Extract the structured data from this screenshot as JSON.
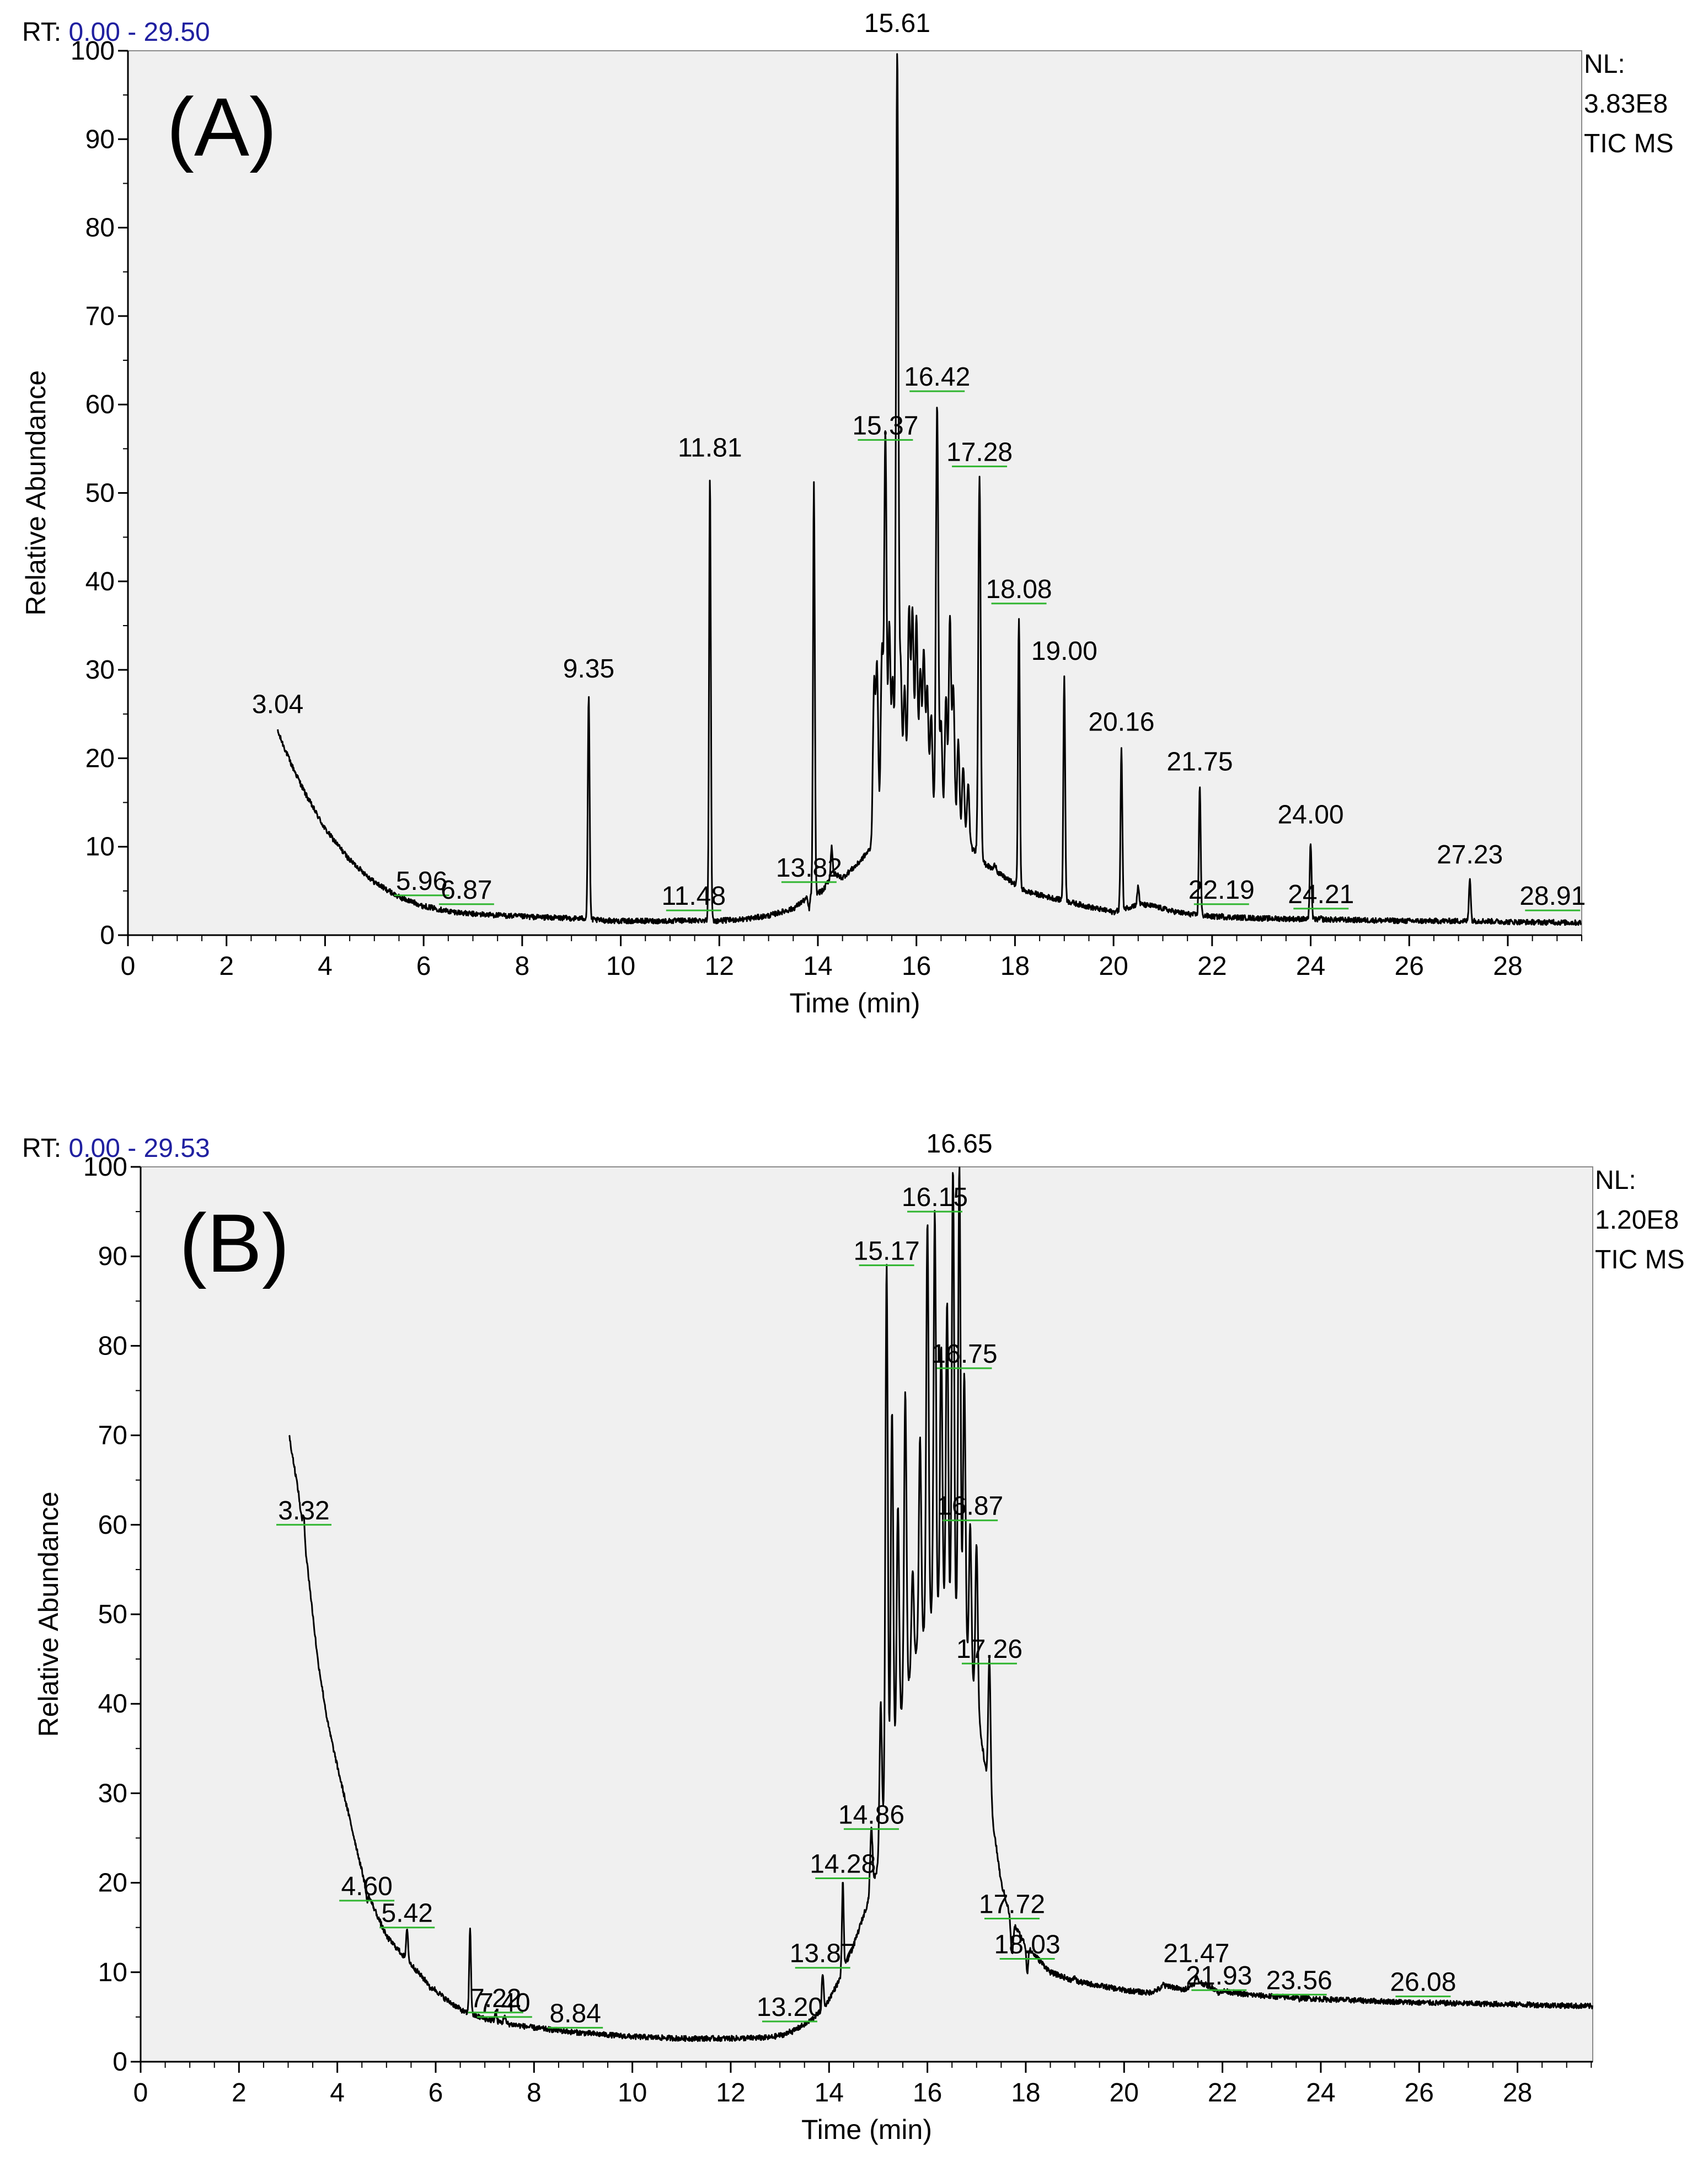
{
  "chart_data": [
    {
      "type": "line",
      "panel_label": "(A)",
      "rt_prefix": "RT:",
      "rt_range_text": "0.00 - 29.50",
      "nl_lines": [
        "NL:",
        "3.83E8",
        "TIC  MS"
      ],
      "xlabel": "Time (min)",
      "ylabel": "Relative Abundance",
      "xlim": [
        0,
        29.5
      ],
      "ylim": [
        0,
        100
      ],
      "x_ticks": [
        0,
        2,
        4,
        6,
        8,
        10,
        12,
        14,
        16,
        18,
        20,
        22,
        24,
        26,
        28
      ],
      "y_ticks": [
        0,
        10,
        20,
        30,
        40,
        50,
        60,
        70,
        80,
        90,
        100
      ],
      "baseline": [
        [
          3.04,
          23
        ],
        [
          3.3,
          19.5
        ],
        [
          3.6,
          16
        ],
        [
          4,
          12
        ],
        [
          4.5,
          8.5
        ],
        [
          5,
          6
        ],
        [
          5.5,
          4.3
        ],
        [
          6,
          3.3
        ],
        [
          6.5,
          2.7
        ],
        [
          7,
          2.4
        ],
        [
          8,
          2.1
        ],
        [
          9,
          1.9
        ],
        [
          9.3,
          1.9
        ],
        [
          9.5,
          1.7
        ],
        [
          10,
          1.6
        ],
        [
          11,
          1.6
        ],
        [
          11.7,
          1.7
        ],
        [
          11.9,
          1.6
        ],
        [
          12.5,
          1.8
        ],
        [
          13,
          2.2
        ],
        [
          13.5,
          3
        ],
        [
          13.85,
          4.5
        ],
        [
          14.1,
          5
        ],
        [
          14.3,
          7
        ],
        [
          14.5,
          6.5
        ],
        [
          14.8,
          8
        ],
        [
          15.1,
          10
        ],
        [
          15.3,
          13
        ],
        [
          15.6,
          16
        ],
        [
          15.9,
          17
        ],
        [
          16.2,
          15
        ],
        [
          16.5,
          13
        ],
        [
          16.8,
          12
        ],
        [
          17.1,
          10
        ],
        [
          17.4,
          8
        ],
        [
          17.8,
          6.5
        ],
        [
          18.2,
          5
        ],
        [
          18.6,
          4.4
        ],
        [
          19,
          3.9
        ],
        [
          19.5,
          3.2
        ],
        [
          20,
          2.6
        ],
        [
          20.5,
          3.5
        ],
        [
          20.8,
          3.3
        ],
        [
          21.2,
          2.7
        ],
        [
          21.5,
          2.4
        ],
        [
          22,
          2.1
        ],
        [
          23,
          1.9
        ],
        [
          24,
          1.8
        ],
        [
          25,
          1.7
        ],
        [
          26,
          1.6
        ],
        [
          27,
          1.6
        ],
        [
          27.5,
          1.6
        ],
        [
          28,
          1.5
        ],
        [
          29.5,
          1.4
        ]
      ],
      "peaks": [
        [
          5.96,
          3.3
        ],
        [
          6.87,
          2.4
        ],
        [
          9.35,
          27
        ],
        [
          11.48,
          1.6
        ],
        [
          11.81,
          52
        ],
        [
          13.82,
          3
        ],
        [
          13.92,
          51
        ],
        [
          14.28,
          10
        ],
        [
          15.14,
          28
        ],
        [
          15.2,
          30
        ],
        [
          15.3,
          32
        ],
        [
          15.37,
          57
        ],
        [
          15.45,
          35
        ],
        [
          15.52,
          29
        ],
        [
          15.61,
          100
        ],
        [
          15.68,
          30
        ],
        [
          15.76,
          28
        ],
        [
          15.85,
          37
        ],
        [
          15.92,
          37
        ],
        [
          16.0,
          36
        ],
        [
          16.08,
          30
        ],
        [
          16.15,
          32
        ],
        [
          16.22,
          28
        ],
        [
          16.3,
          25
        ],
        [
          16.42,
          60
        ],
        [
          16.5,
          24
        ],
        [
          16.6,
          27
        ],
        [
          16.68,
          36
        ],
        [
          16.75,
          28
        ],
        [
          16.85,
          22
        ],
        [
          16.95,
          19
        ],
        [
          17.05,
          17
        ],
        [
          17.28,
          52
        ],
        [
          17.6,
          8
        ],
        [
          18.08,
          36
        ],
        [
          19.0,
          29
        ],
        [
          20.16,
          21
        ],
        [
          20.5,
          5.5
        ],
        [
          21.75,
          17
        ],
        [
          22.19,
          2.2
        ],
        [
          24.0,
          10.5
        ],
        [
          24.21,
          1.9
        ],
        [
          27.23,
          6.5
        ],
        [
          28.91,
          1.6
        ]
      ],
      "peak_labels": [
        {
          "label": "3.04",
          "rt": 3.04,
          "y": 24.5,
          "bar": false
        },
        {
          "label": "5.96",
          "rt": 5.96,
          "y": 4.5,
          "bar": true
        },
        {
          "label": "6.87",
          "rt": 6.87,
          "y": 3.5,
          "bar": true
        },
        {
          "label": "9.35",
          "rt": 9.35,
          "y": 28.5,
          "bar": false
        },
        {
          "label": "11.48",
          "rt": 11.48,
          "y": 2.8,
          "bar": true
        },
        {
          "label": "11.81",
          "rt": 11.81,
          "y": 53.5,
          "bar": false
        },
        {
          "label": "13.82",
          "rt": 13.82,
          "y": 6,
          "bar": true
        },
        {
          "label": "15.37",
          "rt": 15.37,
          "y": 56,
          "bar": true
        },
        {
          "label": "15.61",
          "rt": 15.61,
          "y": 101.5,
          "bar": false
        },
        {
          "label": "16.42",
          "rt": 16.42,
          "y": 61.5,
          "bar": true
        },
        {
          "label": "17.28",
          "rt": 17.28,
          "y": 53,
          "bar": true
        },
        {
          "label": "18.08",
          "rt": 18.08,
          "y": 37.5,
          "bar": true
        },
        {
          "label": "19.00",
          "rt": 19.0,
          "y": 30.5,
          "bar": false
        },
        {
          "label": "20.16",
          "rt": 20.16,
          "y": 22.5,
          "bar": false
        },
        {
          "label": "21.75",
          "rt": 21.75,
          "y": 18,
          "bar": false
        },
        {
          "label": "22.19",
          "rt": 22.19,
          "y": 3.5,
          "bar": true
        },
        {
          "label": "24.00",
          "rt": 24.0,
          "y": 12,
          "bar": false
        },
        {
          "label": "24.21",
          "rt": 24.21,
          "y": 3,
          "bar": true
        },
        {
          "label": "27.23",
          "rt": 27.23,
          "y": 7.5,
          "bar": false
        },
        {
          "label": "28.91",
          "rt": 28.91,
          "y": 2.8,
          "bar": true
        }
      ]
    },
    {
      "type": "line",
      "panel_label": "(B)",
      "rt_prefix": "RT:",
      "rt_range_text": "0.00 - 29.53",
      "nl_lines": [
        "NL:",
        "1.20E8",
        "TIC  MS"
      ],
      "xlabel": "Time (min)",
      "ylabel": "Relative Abundance",
      "xlim": [
        0,
        29.53
      ],
      "ylim": [
        0,
        100
      ],
      "x_ticks": [
        0,
        2,
        4,
        6,
        8,
        10,
        12,
        14,
        16,
        18,
        20,
        22,
        24,
        26,
        28
      ],
      "y_ticks": [
        0,
        10,
        20,
        30,
        40,
        50,
        60,
        70,
        80,
        90,
        100
      ],
      "baseline": [
        [
          3.02,
          70
        ],
        [
          3.2,
          64
        ],
        [
          3.4,
          55
        ],
        [
          3.6,
          45
        ],
        [
          3.8,
          38
        ],
        [
          4,
          33
        ],
        [
          4.3,
          26
        ],
        [
          4.6,
          19
        ],
        [
          5,
          14
        ],
        [
          5.4,
          11.5
        ],
        [
          5.8,
          9
        ],
        [
          6.2,
          7
        ],
        [
          6.6,
          5.5
        ],
        [
          7,
          4.8
        ],
        [
          7.5,
          4.2
        ],
        [
          8,
          3.8
        ],
        [
          8.8,
          3.3
        ],
        [
          9.5,
          3
        ],
        [
          10,
          2.8
        ],
        [
          11,
          2.6
        ],
        [
          12,
          2.6
        ],
        [
          12.8,
          2.7
        ],
        [
          13.2,
          3.2
        ],
        [
          13.6,
          4.5
        ],
        [
          13.9,
          6
        ],
        [
          14.2,
          9
        ],
        [
          14.5,
          13
        ],
        [
          14.8,
          18
        ],
        [
          15,
          22
        ],
        [
          15.2,
          30
        ],
        [
          15.5,
          40
        ],
        [
          15.8,
          46
        ],
        [
          16.1,
          50
        ],
        [
          16.4,
          50
        ],
        [
          16.7,
          48
        ],
        [
          17,
          40
        ],
        [
          17.3,
          28
        ],
        [
          17.5,
          20
        ],
        [
          17.7,
          16
        ],
        [
          18,
          13
        ],
        [
          18.5,
          10
        ],
        [
          19,
          9
        ],
        [
          19.5,
          8.5
        ],
        [
          20,
          8
        ],
        [
          20.5,
          7.7
        ],
        [
          20.9,
          8.5
        ],
        [
          21.2,
          8
        ],
        [
          21.5,
          9
        ],
        [
          21.9,
          8
        ],
        [
          22.5,
          7.5
        ],
        [
          23,
          7.3
        ],
        [
          24,
          7
        ],
        [
          25,
          6.8
        ],
        [
          26,
          6.6
        ],
        [
          27,
          6.5
        ],
        [
          28,
          6.4
        ],
        [
          29.53,
          6.2
        ]
      ],
      "peaks": [
        [
          3.32,
          61
        ],
        [
          4.6,
          18
        ],
        [
          5.42,
          15
        ],
        [
          5.9,
          8
        ],
        [
          6.7,
          15
        ],
        [
          7.22,
          5.6
        ],
        [
          7.4,
          5.2
        ],
        [
          8.84,
          3.3
        ],
        [
          13.2,
          3.5
        ],
        [
          13.87,
          10
        ],
        [
          14.28,
          20
        ],
        [
          14.86,
          26
        ],
        [
          15.05,
          40
        ],
        [
          15.17,
          89
        ],
        [
          15.28,
          73
        ],
        [
          15.4,
          62
        ],
        [
          15.55,
          75
        ],
        [
          15.7,
          55
        ],
        [
          15.85,
          70
        ],
        [
          16.0,
          94
        ],
        [
          16.15,
          95
        ],
        [
          16.28,
          80
        ],
        [
          16.4,
          85
        ],
        [
          16.52,
          100
        ],
        [
          16.65,
          100
        ],
        [
          16.75,
          77
        ],
        [
          16.87,
          60
        ],
        [
          17.0,
          58
        ],
        [
          17.26,
          45
        ],
        [
          17.72,
          12
        ],
        [
          18.03,
          10
        ],
        [
          19.0,
          9.5
        ],
        [
          20.8,
          8.7
        ],
        [
          21.47,
          9.5
        ],
        [
          21.93,
          7.5
        ],
        [
          23.56,
          7
        ],
        [
          26.08,
          6.6
        ]
      ],
      "peak_labels": [
        {
          "label": "3.32",
          "rt": 3.32,
          "y": 60,
          "bar": true
        },
        {
          "label": "4.60",
          "rt": 4.6,
          "y": 18,
          "bar": true
        },
        {
          "label": "5.42",
          "rt": 5.42,
          "y": 15,
          "bar": true
        },
        {
          "label": "7.22",
          "rt": 7.22,
          "y": 5.5,
          "bar": true
        },
        {
          "label": "7.40",
          "rt": 7.4,
          "y": 5,
          "bar": true
        },
        {
          "label": "8.84",
          "rt": 8.84,
          "y": 3.8,
          "bar": true
        },
        {
          "label": "13.20",
          "rt": 13.2,
          "y": 4.5,
          "bar": true
        },
        {
          "label": "13.87",
          "rt": 13.87,
          "y": 10.5,
          "bar": true
        },
        {
          "label": "14.28",
          "rt": 14.28,
          "y": 20.5,
          "bar": true
        },
        {
          "label": "14.86",
          "rt": 14.86,
          "y": 26,
          "bar": true
        },
        {
          "label": "15.17",
          "rt": 15.17,
          "y": 89,
          "bar": true
        },
        {
          "label": "16.15",
          "rt": 16.15,
          "y": 95,
          "bar": true
        },
        {
          "label": "16.65",
          "rt": 16.65,
          "y": 101,
          "bar": false
        },
        {
          "label": "16.75",
          "rt": 16.75,
          "y": 77.5,
          "bar": true
        },
        {
          "label": "16.87",
          "rt": 16.87,
          "y": 60.5,
          "bar": true
        },
        {
          "label": "17.26",
          "rt": 17.26,
          "y": 44.5,
          "bar": true
        },
        {
          "label": "17.72",
          "rt": 17.72,
          "y": 16,
          "bar": true
        },
        {
          "label": "18.03",
          "rt": 18.03,
          "y": 11.5,
          "bar": true
        },
        {
          "label": "21.47",
          "rt": 21.47,
          "y": 10.5,
          "bar": false
        },
        {
          "label": "21.93",
          "rt": 21.93,
          "y": 8,
          "bar": true
        },
        {
          "label": "23.56",
          "rt": 23.56,
          "y": 7.5,
          "bar": true
        },
        {
          "label": "26.08",
          "rt": 26.08,
          "y": 7.3,
          "bar": true
        }
      ]
    }
  ],
  "colors": {
    "trace": "#000000",
    "plot_bg": "#f0f0f0",
    "rt_value": "#2020a0",
    "label_bar": "#2fb52f"
  }
}
